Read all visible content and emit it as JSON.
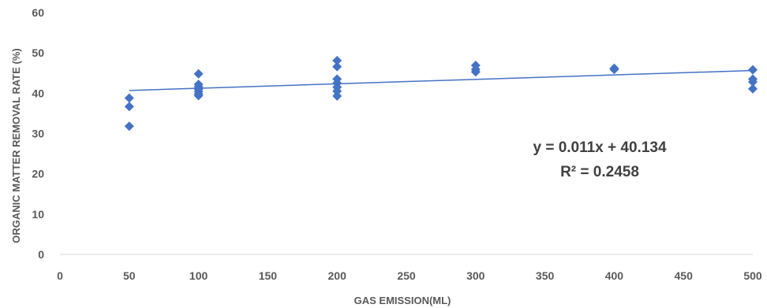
{
  "chart_data": {
    "type": "scatter",
    "title": "",
    "xlabel": "GAS EMISSION(ML)",
    "ylabel": "ORGANIC MATTER REMOVAL RATE (%)",
    "xlim": [
      0,
      500
    ],
    "ylim": [
      0,
      60
    ],
    "x_ticks": [
      "0",
      "50",
      "100",
      "150",
      "200",
      "250",
      "300",
      "350",
      "400",
      "450",
      "500"
    ],
    "y_ticks": [
      "0",
      "10",
      "20",
      "30",
      "40",
      "50",
      "60"
    ],
    "grid": false,
    "legend": "none",
    "series": [
      {
        "marker": "diamond",
        "color": "#4472C4",
        "points": [
          {
            "x": 50,
            "y": 38.8
          },
          {
            "x": 50,
            "y": 36.7
          },
          {
            "x": 50,
            "y": 31.8
          },
          {
            "x": 100,
            "y": 44.8
          },
          {
            "x": 100,
            "y": 42.2
          },
          {
            "x": 100,
            "y": 41.6
          },
          {
            "x": 100,
            "y": 41.0
          },
          {
            "x": 100,
            "y": 40.4
          },
          {
            "x": 100,
            "y": 39.8
          },
          {
            "x": 100,
            "y": 39.4
          },
          {
            "x": 200,
            "y": 48.1
          },
          {
            "x": 200,
            "y": 46.6
          },
          {
            "x": 200,
            "y": 43.5
          },
          {
            "x": 200,
            "y": 42.5
          },
          {
            "x": 200,
            "y": 41.5
          },
          {
            "x": 200,
            "y": 40.5
          },
          {
            "x": 200,
            "y": 39.3
          },
          {
            "x": 300,
            "y": 46.9
          },
          {
            "x": 300,
            "y": 45.9
          },
          {
            "x": 300,
            "y": 45.3
          },
          {
            "x": 400,
            "y": 46.2
          },
          {
            "x": 400,
            "y": 45.9
          },
          {
            "x": 500,
            "y": 45.8
          },
          {
            "x": 500,
            "y": 43.5
          },
          {
            "x": 500,
            "y": 42.8
          },
          {
            "x": 500,
            "y": 41.1
          }
        ]
      }
    ],
    "trendline": {
      "type": "linear",
      "slope": 0.011,
      "intercept": 40.134,
      "x_range": [
        50,
        500
      ],
      "color": "#4472C4",
      "equation_label": "y = 0.011x + 40.134",
      "r2_label": "R² = 0.2458"
    }
  }
}
